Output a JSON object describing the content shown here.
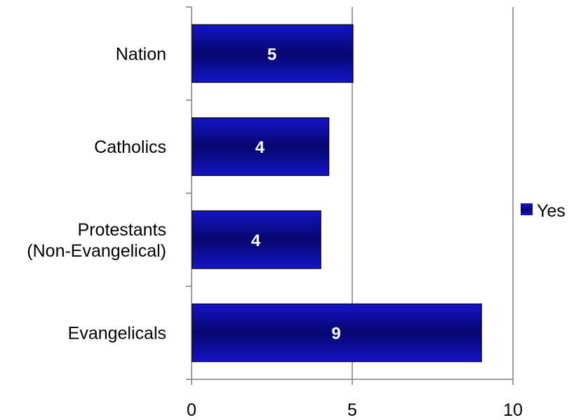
{
  "chart_data": {
    "type": "bar",
    "orientation": "horizontal",
    "categories": [
      "Nation",
      "Catholics",
      "Protestants (Non-Evangelical)",
      "Evangelicals"
    ],
    "category_lines": [
      [
        "Nation"
      ],
      [
        "Catholics"
      ],
      [
        "Protestants",
        "(Non-Evangelical)"
      ],
      [
        "Evangelicals"
      ]
    ],
    "series": [
      {
        "name": "Yes",
        "values": [
          5,
          4.25,
          4,
          9
        ],
        "data_labels": [
          "5",
          "4",
          "4",
          "9"
        ]
      }
    ],
    "xlim": [
      0,
      10
    ],
    "x_ticks": [
      0,
      5,
      10
    ],
    "x_tick_labels": [
      "0",
      "5",
      "10"
    ],
    "grid": "vertical",
    "legend_position": "right",
    "bar_color": "#1414c8",
    "bar_dark": "#06066e",
    "gridline_color": "#808080"
  }
}
